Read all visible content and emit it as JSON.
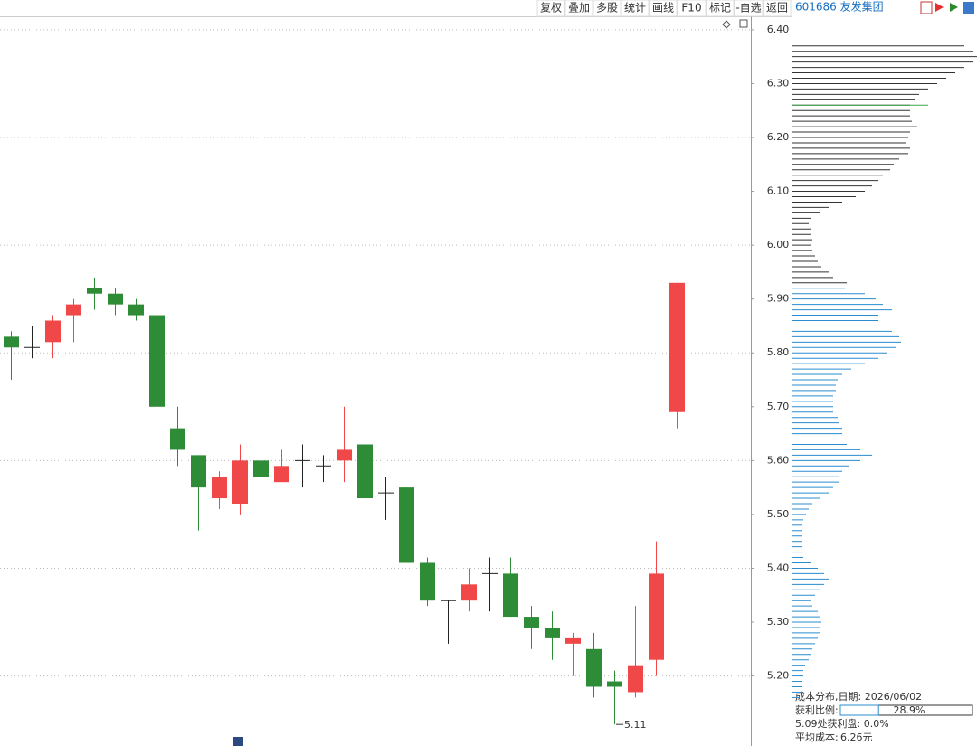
{
  "toolbar": {
    "buttons": [
      "复权",
      "叠加",
      "多股",
      "统计",
      "画线",
      "F10",
      "标记",
      "-自选",
      "返回"
    ],
    "stock": "601686 友发集团"
  },
  "chart_data": {
    "type": "candlestick",
    "up_color": "#f04848",
    "down_color": "#2e8b36",
    "flat_color": "#222222",
    "open": [
      5.83,
      5.81,
      5.82,
      5.87,
      5.92,
      5.91,
      5.89,
      5.87,
      5.66,
      5.61,
      5.53,
      5.52,
      5.6,
      5.56,
      5.6,
      5.59,
      5.6,
      5.63,
      5.54,
      5.55,
      5.41,
      5.34,
      5.34,
      5.39,
      5.39,
      5.31,
      5.29,
      5.26,
      5.25,
      5.19,
      5.17,
      5.23,
      5.69
    ],
    "high": [
      5.84,
      5.85,
      5.87,
      5.9,
      5.94,
      5.92,
      5.9,
      5.88,
      5.7,
      5.61,
      5.58,
      5.63,
      5.61,
      5.62,
      5.63,
      5.61,
      5.7,
      5.64,
      5.57,
      5.55,
      5.42,
      5.34,
      5.4,
      5.42,
      5.42,
      5.33,
      5.32,
      5.28,
      5.28,
      5.21,
      5.33,
      5.45,
      5.93
    ],
    "low": [
      5.75,
      5.79,
      5.79,
      5.82,
      5.88,
      5.87,
      5.86,
      5.66,
      5.59,
      5.47,
      5.51,
      5.5,
      5.53,
      5.56,
      5.55,
      5.56,
      5.56,
      5.52,
      5.49,
      5.41,
      5.33,
      5.26,
      5.32,
      5.32,
      5.31,
      5.25,
      5.23,
      5.2,
      5.16,
      5.11,
      5.16,
      5.2,
      5.66
    ],
    "close": [
      5.81,
      5.81,
      5.86,
      5.89,
      5.91,
      5.89,
      5.87,
      5.7,
      5.62,
      5.55,
      5.57,
      5.6,
      5.57,
      5.59,
      5.6,
      5.59,
      5.62,
      5.53,
      5.54,
      5.41,
      5.34,
      5.34,
      5.37,
      5.39,
      5.31,
      5.29,
      5.27,
      5.27,
      5.18,
      5.18,
      5.22,
      5.39,
      5.93
    ],
    "min_marker": 5.11,
    "ylim": [
      5.07,
      6.425
    ],
    "yticks": [
      {
        "value": 6.4,
        "label": "6.40"
      },
      {
        "value": 6.3,
        "label": "6.30"
      },
      {
        "value": 6.2,
        "label": "6.20"
      },
      {
        "value": 6.1,
        "label": "6.10"
      },
      {
        "value": 6.0,
        "label": "6.00"
      },
      {
        "value": 5.9,
        "label": "5.90"
      },
      {
        "value": 5.8,
        "label": "5.80"
      },
      {
        "value": 5.7,
        "label": "5.70"
      },
      {
        "value": 5.6,
        "label": "5.60"
      },
      {
        "value": 5.5,
        "label": "5.50"
      },
      {
        "value": 5.4,
        "label": "5.40"
      },
      {
        "value": 5.3,
        "label": "5.30"
      },
      {
        "value": 5.2,
        "label": "5.20"
      }
    ],
    "grid_interval": 2,
    "cost_distribution": {
      "xlim": [
        0,
        204
      ],
      "loss": {
        "color": "#333333",
        "levels": [
          6.37,
          6.36,
          6.35,
          6.34,
          6.33,
          6.32,
          6.31,
          6.3,
          6.29,
          6.28,
          6.27,
          6.26,
          6.25,
          6.24,
          6.23,
          6.22,
          6.21,
          6.2,
          6.19,
          6.18,
          6.17,
          6.16,
          6.15,
          6.14,
          6.13,
          6.12,
          6.11,
          6.1,
          6.09,
          6.08,
          6.07,
          6.06,
          6.05,
          6.04,
          6.03,
          6.02,
          6.01,
          6.0,
          5.99,
          5.98,
          5.97,
          5.96,
          5.95,
          5.94,
          5.93
        ],
        "widths": [
          190,
          200,
          204,
          200,
          190,
          180,
          170,
          160,
          150,
          140,
          135,
          130,
          130,
          130,
          132,
          138,
          130,
          128,
          125,
          130,
          128,
          118,
          112,
          108,
          100,
          95,
          88,
          80,
          70,
          55,
          40,
          30,
          20,
          18,
          20,
          20,
          22,
          20,
          22,
          25,
          28,
          32,
          40,
          45,
          60
        ]
      },
      "profit": {
        "color": "#2a8ccf",
        "levels": [
          5.92,
          5.91,
          5.9,
          5.89,
          5.88,
          5.87,
          5.86,
          5.85,
          5.84,
          5.83,
          5.82,
          5.81,
          5.8,
          5.79,
          5.78,
          5.77,
          5.76,
          5.75,
          5.74,
          5.73,
          5.72,
          5.71,
          5.7,
          5.69,
          5.68,
          5.67,
          5.66,
          5.65,
          5.64,
          5.63,
          5.62,
          5.61,
          5.6,
          5.59,
          5.58,
          5.57,
          5.56,
          5.55,
          5.54,
          5.53,
          5.52,
          5.51,
          5.5,
          5.49,
          5.48,
          5.47,
          5.46,
          5.45,
          5.44,
          5.43,
          5.42,
          5.41,
          5.4,
          5.39,
          5.38,
          5.37,
          5.36,
          5.35,
          5.34,
          5.33,
          5.32,
          5.31,
          5.3,
          5.29,
          5.28,
          5.27,
          5.26,
          5.25,
          5.24,
          5.23,
          5.22,
          5.21,
          5.2,
          5.19,
          5.18,
          5.17,
          5.16
        ],
        "widths": [
          58,
          80,
          92,
          100,
          110,
          95,
          95,
          100,
          110,
          118,
          120,
          115,
          105,
          95,
          80,
          65,
          55,
          50,
          48,
          48,
          45,
          45,
          45,
          45,
          50,
          52,
          55,
          55,
          55,
          60,
          75,
          88,
          75,
          62,
          55,
          52,
          52,
          45,
          40,
          30,
          22,
          18,
          15,
          12,
          10,
          10,
          10,
          10,
          10,
          10,
          12,
          20,
          28,
          35,
          40,
          35,
          30,
          25,
          20,
          22,
          28,
          30,
          32,
          30,
          30,
          28,
          25,
          22,
          20,
          18,
          14,
          12,
          12,
          10,
          10,
          10,
          8
        ]
      },
      "avg_color": "#3aa84a"
    }
  },
  "info": {
    "title": "成本分布,日期: 2026/06/02",
    "profit_ratio_label": "获利比例:",
    "profit_ratio": {
      "value": 28.9,
      "label": "28.9%"
    },
    "profit_at_price": "5.09处获利盘: 0.0%",
    "avg_cost_label": "平均成本:",
    "avg_cost": {
      "value": 6.26,
      "label": "6.26元"
    }
  }
}
